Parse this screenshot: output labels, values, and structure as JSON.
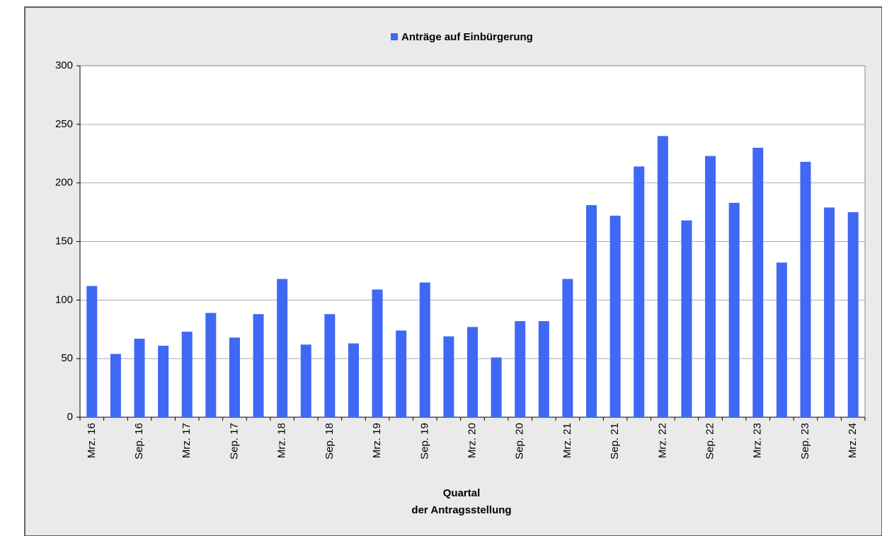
{
  "chart_data": {
    "type": "bar",
    "legend": "Anträge auf Einbürgerung",
    "xlabel": [
      "Quartal",
      "der Antragsstellung"
    ],
    "categories": [
      "Mrz. 16",
      null,
      "Sep. 16",
      null,
      "Mrz. 17",
      null,
      "Sep. 17",
      null,
      "Mrz. 18",
      null,
      "Sep. 18",
      null,
      "Mrz. 19",
      null,
      "Sep. 19",
      null,
      "Mrz. 20",
      null,
      "Sep. 20",
      null,
      "Mrz. 21",
      null,
      "Sep. 21",
      null,
      "Mrz. 22",
      null,
      "Sep. 22",
      null,
      "Mrz. 23",
      null,
      "Sep. 23",
      null,
      "Mrz. 24"
    ],
    "values": [
      112,
      54,
      67,
      61,
      73,
      89,
      68,
      88,
      118,
      62,
      88,
      63,
      109,
      74,
      115,
      69,
      77,
      51,
      82,
      82,
      118,
      181,
      172,
      214,
      240,
      168,
      223,
      183,
      230,
      132,
      218,
      179,
      175
    ],
    "color": "#3f68f4",
    "ylim": [
      0,
      300
    ],
    "yticks": [
      0,
      50,
      100,
      150,
      200,
      250,
      300
    ],
    "grid": true,
    "legend_position": "top"
  }
}
